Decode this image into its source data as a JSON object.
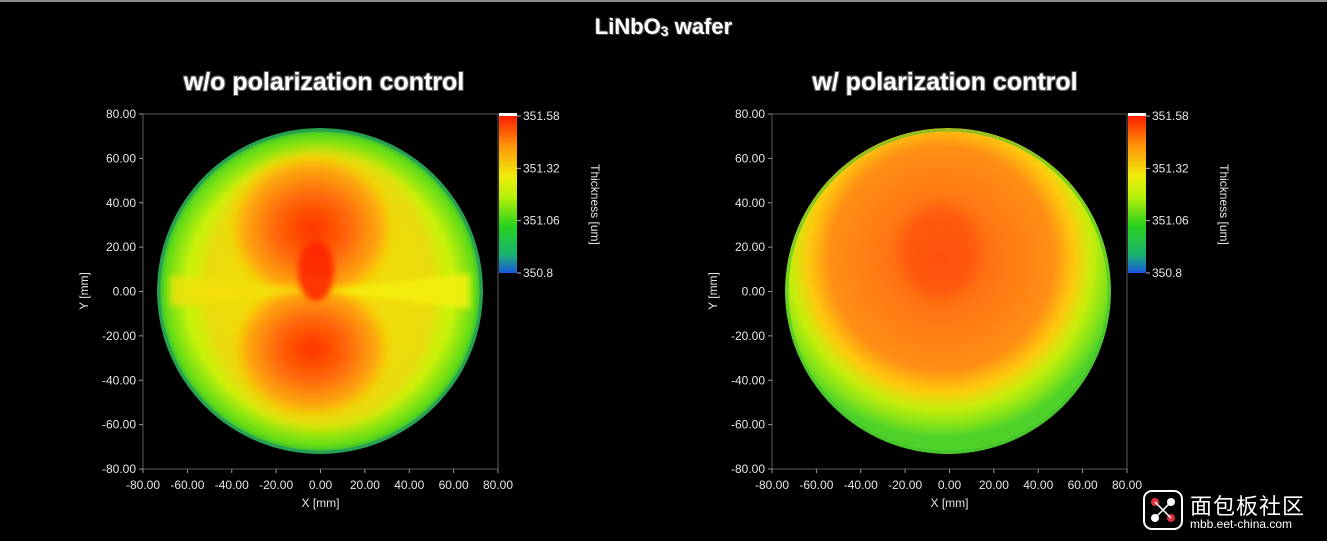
{
  "figure": {
    "title_main": "LiNbO",
    "title_sub": "3",
    "title_rest": " wafer"
  },
  "watermark": {
    "text_cn": "面包板社区",
    "url": "mbb.eet-china.com"
  },
  "colors": {
    "background": "#000000",
    "scale_min": "#1a56e0",
    "scale_low": "#1ec832",
    "scale_mid": "#e6f00a",
    "scale_high": "#ff8c0a",
    "scale_max": "#ff1e00"
  },
  "chart_data": [
    {
      "type": "heatmap",
      "title": "w/o polarization control",
      "xlabel": "X [mm]",
      "ylabel": "Y [mm]",
      "xlim": [
        -80,
        80
      ],
      "ylim": [
        -80,
        80
      ],
      "xticks": [
        "-80.00",
        "-60.00",
        "-40.00",
        "-20.00",
        "0.00",
        "20.00",
        "40.00",
        "60.00",
        "80.00"
      ],
      "yticks": [
        "80.00",
        "60.00",
        "40.00",
        "20.00",
        "0.00",
        "-20.00",
        "-40.00",
        "-60.00",
        "-80.00"
      ],
      "colorbar": {
        "label": "Thickness [um]",
        "min": 350.8,
        "max": 351.58,
        "ticks": [
          "351.58",
          "351.32",
          "351.06",
          "350.8"
        ]
      },
      "wafer_diameter_mm": 150,
      "pattern": "two-lobe (bowtie) peak along Y axis, thicker top and bottom lobes meeting at center, thinner edges",
      "center_value": 351.58,
      "edge_value": 351.0
    },
    {
      "type": "heatmap",
      "title": "w/ polarization control",
      "xlabel": "X [mm]",
      "ylabel": "Y [mm]",
      "xlim": [
        -80,
        80
      ],
      "ylim": [
        -80,
        80
      ],
      "xticks": [
        "-80.00",
        "-60.00",
        "-40.00",
        "-20.00",
        "0.00",
        "20.00",
        "40.00",
        "60.00",
        "80.00"
      ],
      "yticks": [
        "80.00",
        "60.00",
        "40.00",
        "20.00",
        "0.00",
        "-20.00",
        "-40.00",
        "-60.00",
        "-80.00"
      ],
      "colorbar": {
        "label": "Thickness [um]",
        "min": 350.8,
        "max": 351.58,
        "ticks": [
          "351.58",
          "351.32",
          "351.06",
          "350.8"
        ]
      },
      "wafer_diameter_mm": 150,
      "pattern": "radially symmetric dome, orange-red center fading to green at rim",
      "center_value": 351.47,
      "edge_value": 351.1
    }
  ]
}
